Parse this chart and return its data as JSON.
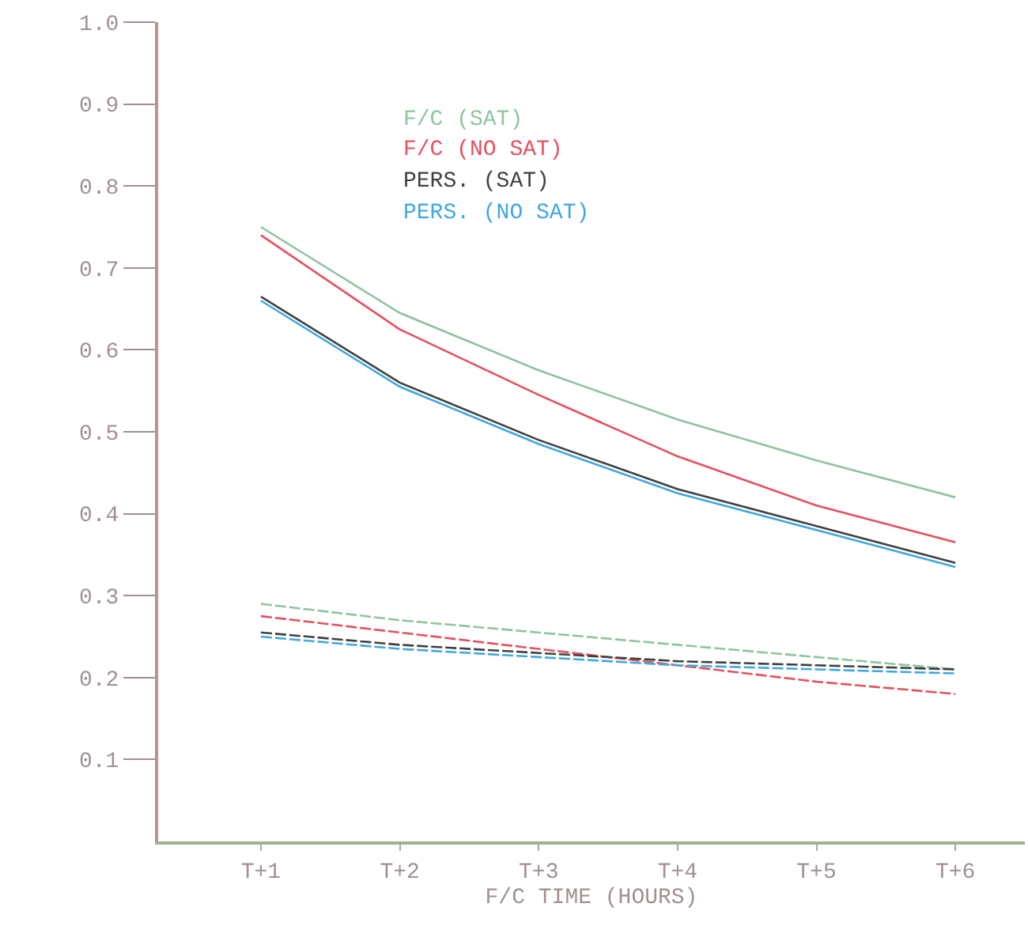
{
  "chart_data": {
    "type": "line",
    "xlabel": "F/C TIME (HOURS)",
    "categories": [
      "T+1",
      "T+2",
      "T+3",
      "T+4",
      "T+5",
      "T+6"
    ],
    "ylim": [
      0,
      1
    ],
    "yticks": [
      0.1,
      0.2,
      0.3,
      0.4,
      0.5,
      0.6,
      0.7,
      0.8,
      0.9,
      {
        "value": 1,
        "label": "1.0"
      }
    ],
    "legend": "top",
    "marker": "none",
    "series": [
      {
        "name": "F/C (SAT)",
        "color": "#8fc4a0",
        "line_style": "solid",
        "values": [
          0.75,
          0.645,
          0.575,
          0.515,
          0.465,
          0.42
        ]
      },
      {
        "name": "F/C (NO SAT)",
        "color": "#e5505f",
        "line_style": "solid",
        "values": [
          0.74,
          0.625,
          0.545,
          0.47,
          0.41,
          0.365
        ]
      },
      {
        "name": "PERS. (SAT)",
        "color": "#404040",
        "line_style": "solid",
        "values": [
          0.665,
          0.56,
          0.49,
          0.43,
          0.385,
          0.34
        ]
      },
      {
        "name": "PERS. (NO SAT)",
        "color": "#40a8e0",
        "line_style": "solid",
        "values": [
          0.66,
          0.555,
          0.485,
          0.425,
          0.38,
          0.335
        ]
      },
      {
        "color": "#8fc4a0",
        "line_style": "dashed",
        "values": [
          0.29,
          0.27,
          0.255,
          0.24,
          0.225,
          0.21
        ]
      },
      {
        "color": "#e5505f",
        "line_style": "dashed",
        "values": [
          0.275,
          0.255,
          0.235,
          0.215,
          0.195,
          0.18
        ]
      },
      {
        "color": "#404040",
        "line_style": "dashed",
        "values": [
          0.255,
          0.24,
          0.23,
          0.22,
          0.215,
          0.21
        ]
      },
      {
        "color": "#40a8e0",
        "line_style": "dashed",
        "values": [
          0.25,
          0.235,
          0.225,
          0.215,
          0.21,
          0.205
        ]
      }
    ]
  }
}
